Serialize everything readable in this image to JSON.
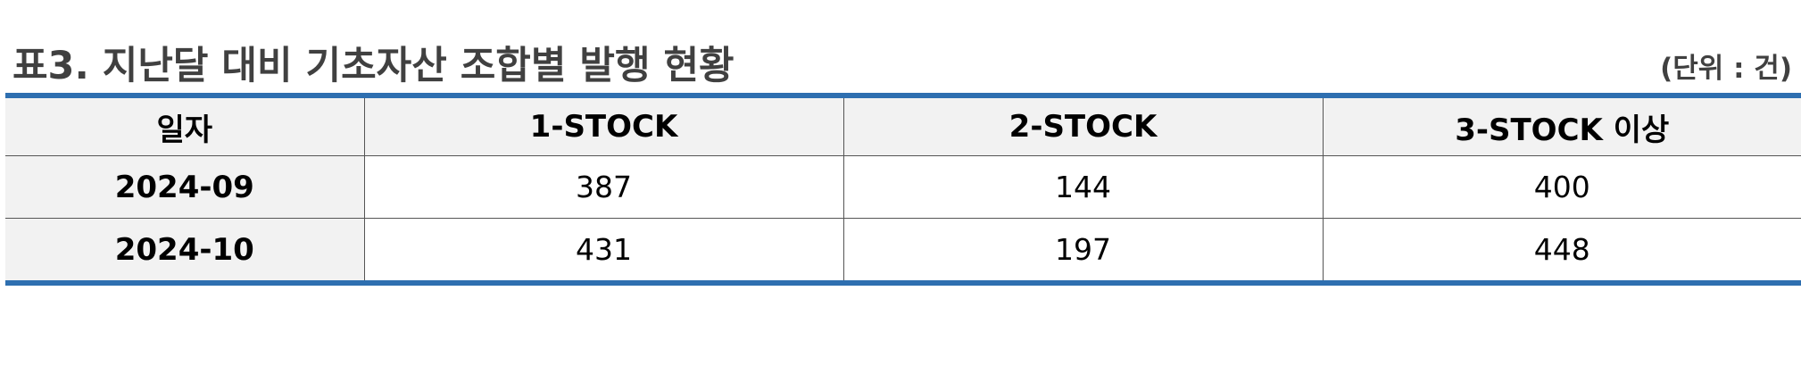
{
  "header": {
    "title": "표3. 지난달 대비 기초자산 조합별 발행 현황",
    "unit": "(단위 : 건)"
  },
  "table": {
    "columns": [
      "일자",
      "1-STOCK",
      "2-STOCK",
      "3-STOCK 이상"
    ],
    "rows": [
      {
        "date": "2024-09",
        "one_stock": "387",
        "two_stock": "144",
        "three_stock_plus": "400"
      },
      {
        "date": "2024-10",
        "one_stock": "431",
        "two_stock": "197",
        "three_stock_plus": "448"
      }
    ]
  },
  "colors": {
    "accent_border": "#2e6fb0",
    "header_bg": "#f2f2f2",
    "title_text": "#404040"
  }
}
